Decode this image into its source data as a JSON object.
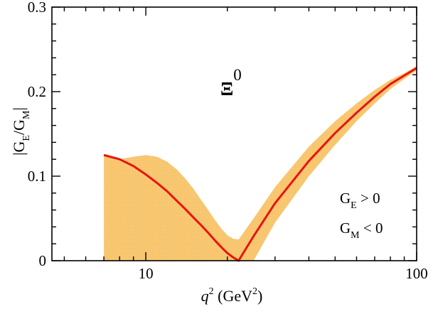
{
  "chart_data": {
    "type": "line",
    "title": "",
    "xscale": "log",
    "xlim": [
      4.5,
      100
    ],
    "ylim": [
      0,
      0.3
    ],
    "x_ticks": [
      10,
      100
    ],
    "x_tick_labels": [
      "10",
      "100"
    ],
    "y_ticks": [
      0,
      0.1,
      0.2,
      0.3
    ],
    "y_tick_labels": [
      "0",
      "0.1",
      "0.2",
      "0.3"
    ],
    "xlabel": {
      "main": "q",
      "sup": "2",
      "unit_open": " (GeV",
      "unit_sup": "2",
      "unit_close": ")"
    },
    "ylabel": {
      "bar": "|",
      "g1": "G",
      "sub1": "E",
      "slash": "/G",
      "sub2": "M",
      "bar_end": "|"
    },
    "particle_label": {
      "symbol": "Ξ",
      "sup": "0"
    },
    "annotations": [
      {
        "g": "G",
        "sub": "E",
        "rel": " > 0"
      },
      {
        "g": "G",
        "sub": "M",
        "rel": " < 0"
      }
    ],
    "colors": {
      "band": "#f8c873",
      "curve": "#e8140f",
      "axis": "#000000"
    },
    "series": [
      {
        "type": "line",
        "x": [
          7.0,
          8.0,
          9.0,
          10.0,
          11.0,
          12.0,
          13.0,
          14.0,
          15.0,
          16.0,
          17.0,
          18.0,
          19.0,
          20.0,
          21.0,
          22.0,
          25.0,
          30.0,
          40.0,
          50.0,
          60.0,
          70.0,
          80.0,
          90.0,
          100.0
        ],
        "y": [
          0.125,
          0.12,
          0.112,
          0.102,
          0.092,
          0.082,
          0.071,
          0.061,
          0.051,
          0.042,
          0.033,
          0.024,
          0.016,
          0.009,
          0.004,
          0.0,
          0.029,
          0.068,
          0.118,
          0.151,
          0.175,
          0.194,
          0.209,
          0.219,
          0.228
        ]
      },
      {
        "type": "band",
        "x": [
          7.0,
          8.0,
          9.0,
          10.0,
          11.0,
          12.0,
          13.0,
          14.0,
          15.0,
          16.0,
          17.0,
          18.0,
          19.0,
          20.0,
          21.0,
          22.0,
          25.0,
          30.0,
          40.0,
          50.0,
          60.0,
          70.0,
          80.0,
          90.0,
          100.0
        ],
        "upper": [
          0.125,
          0.12,
          0.123,
          0.125,
          0.123,
          0.117,
          0.108,
          0.097,
          0.085,
          0.072,
          0.06,
          0.048,
          0.038,
          0.03,
          0.026,
          0.025,
          0.05,
          0.087,
          0.135,
          0.165,
          0.186,
          0.202,
          0.214,
          0.222,
          0.23
        ],
        "lower": [
          0.0,
          0.0,
          0.0,
          0.0,
          0.0,
          0.0,
          0.0,
          0.0,
          0.0,
          0.0,
          0.0,
          0.0,
          0.0,
          0.0,
          0.0,
          0.0,
          0.0,
          0.045,
          0.1,
          0.137,
          0.165,
          0.186,
          0.203,
          0.215,
          0.225
        ]
      }
    ]
  }
}
